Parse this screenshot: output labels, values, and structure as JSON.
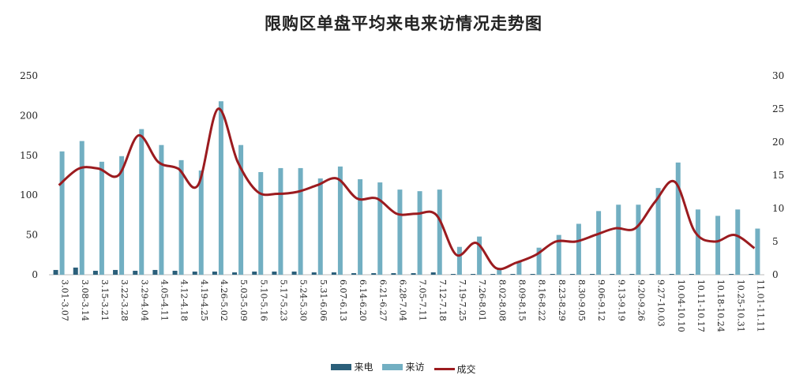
{
  "chart_data": {
    "type": "bar",
    "title": "限购区单盘平均来电来访情况走势图",
    "categories": [
      "3.01-3.07",
      "3.08-3.14",
      "3.15-3.21",
      "3.22-3.28",
      "3.29-4.04",
      "4.05-4.11",
      "4.12-4.18",
      "4.19-4.25",
      "4.26-5.02",
      "5.03-5.09",
      "5.10-5.16",
      "5.17-5.23",
      "5.24-5.30",
      "5.31-6.06",
      "6.07-6.13",
      "6.14-6.20",
      "6.21-6.27",
      "6.28-7.04",
      "7.05-7.11",
      "7.12-7.18",
      "7.19-7.25",
      "7.26-8.01",
      "8.02-8.08",
      "8.09-8.15",
      "8.16-8.22",
      "8.23-8.29",
      "8.30-9.05",
      "9.06-9.12",
      "9.13-9.19",
      "9.20-9.26",
      "9.27-10.03",
      "10.04-10.10",
      "10.11-10.17",
      "10.18-10.24",
      "10.25-10.31",
      "11.01-11.11"
    ],
    "series": [
      {
        "name": "来电",
        "axis": "left",
        "kind": "bar",
        "color": "#2b5f7a",
        "values": [
          6,
          9,
          5,
          6,
          5,
          6,
          5,
          4,
          4,
          3,
          4,
          4,
          4,
          3,
          3,
          2,
          2,
          2,
          2,
          3,
          1,
          1,
          1,
          1,
          1,
          1,
          1,
          1,
          1,
          1,
          1,
          1,
          1,
          0,
          1,
          1
        ]
      },
      {
        "name": "来访",
        "axis": "left",
        "kind": "bar",
        "color": "#72afc2",
        "values": [
          155,
          168,
          142,
          149,
          183,
          163,
          144,
          131,
          218,
          163,
          129,
          134,
          134,
          121,
          136,
          120,
          116,
          107,
          105,
          107,
          35,
          48,
          8,
          17,
          34,
          50,
          64,
          80,
          88,
          88,
          109,
          141,
          82,
          74,
          82,
          58
        ]
      },
      {
        "name": "成交",
        "axis": "right",
        "kind": "line",
        "color": "#9b1b1f",
        "values": [
          13.5,
          16,
          16,
          15,
          21,
          17,
          16,
          13.5,
          25,
          17,
          12.5,
          12.2,
          12.5,
          13.5,
          14.5,
          11.5,
          11.5,
          9.2,
          9.2,
          9,
          3,
          4.8,
          1,
          1.8,
          3,
          5,
          5,
          6,
          7,
          7,
          11,
          14,
          6.5,
          5,
          6,
          4
        ]
      }
    ],
    "y_left": {
      "min": 0,
      "max": 250,
      "ticks": [
        "0",
        "50",
        "100",
        "150",
        "200",
        "250"
      ]
    },
    "y_right": {
      "min": 0,
      "max": 30,
      "ticks": [
        "0",
        "5",
        "10",
        "15",
        "20",
        "25",
        "30"
      ]
    },
    "grid": false,
    "legend_position": "bottom-center"
  }
}
